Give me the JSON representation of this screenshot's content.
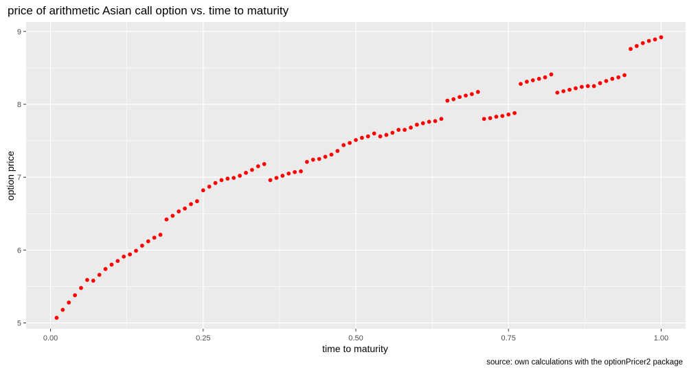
{
  "chart_data": {
    "type": "scatter",
    "title": "price of arithmetic Asian call option vs. time  to maturity",
    "xlabel": "time to maturity",
    "ylabel": "option price",
    "caption": "source: own calculations with the optionPricer2 package",
    "xlim": [
      -0.04,
      1.04
    ],
    "ylim": [
      4.92,
      9.13
    ],
    "xticks": [
      0.0,
      0.25,
      0.5,
      0.75,
      1.0
    ],
    "xtick_labels": [
      "0.00",
      "0.25",
      "0.50",
      "0.75",
      "1.00"
    ],
    "yticks": [
      5,
      6,
      7,
      8,
      9
    ],
    "ytick_labels": [
      "5",
      "6",
      "7",
      "8",
      "9"
    ],
    "grid": true,
    "point_color": "#ff0000",
    "panel_color": "#ebebeb",
    "x": [
      0.01,
      0.02,
      0.03,
      0.04,
      0.05,
      0.06,
      0.07,
      0.08,
      0.09,
      0.1,
      0.11,
      0.12,
      0.13,
      0.14,
      0.15,
      0.16,
      0.17,
      0.18,
      0.19,
      0.2,
      0.21,
      0.22,
      0.23,
      0.24,
      0.25,
      0.26,
      0.27,
      0.28,
      0.29,
      0.3,
      0.31,
      0.32,
      0.33,
      0.34,
      0.35,
      0.36,
      0.37,
      0.38,
      0.39,
      0.4,
      0.41,
      0.42,
      0.43,
      0.44,
      0.45,
      0.46,
      0.47,
      0.48,
      0.49,
      0.5,
      0.51,
      0.52,
      0.53,
      0.54,
      0.55,
      0.56,
      0.57,
      0.58,
      0.59,
      0.6,
      0.61,
      0.62,
      0.63,
      0.64,
      0.65,
      0.66,
      0.67,
      0.68,
      0.69,
      0.7,
      0.71,
      0.72,
      0.73,
      0.74,
      0.75,
      0.76,
      0.77,
      0.78,
      0.79,
      0.8,
      0.81,
      0.82,
      0.83,
      0.84,
      0.85,
      0.86,
      0.87,
      0.88,
      0.89,
      0.9,
      0.91,
      0.92,
      0.93,
      0.94,
      0.95,
      0.96,
      0.97,
      0.98,
      0.99,
      1.0
    ],
    "y": [
      5.07,
      5.18,
      5.28,
      5.38,
      5.48,
      5.59,
      5.58,
      5.66,
      5.74,
      5.8,
      5.85,
      5.91,
      5.94,
      5.99,
      6.06,
      6.12,
      6.17,
      6.21,
      6.42,
      6.47,
      6.53,
      6.57,
      6.63,
      6.67,
      6.82,
      6.87,
      6.92,
      6.96,
      6.98,
      6.99,
      7.02,
      7.06,
      7.1,
      7.15,
      7.18,
      6.96,
      6.99,
      7.02,
      7.05,
      7.07,
      7.08,
      7.21,
      7.24,
      7.25,
      7.28,
      7.31,
      7.36,
      7.44,
      7.47,
      7.51,
      7.54,
      7.56,
      7.6,
      7.56,
      7.58,
      7.61,
      7.65,
      7.65,
      7.68,
      7.72,
      7.74,
      7.76,
      7.77,
      7.8,
      8.05,
      8.07,
      8.1,
      8.12,
      8.14,
      8.17,
      7.8,
      7.81,
      7.83,
      7.84,
      7.86,
      7.88,
      8.28,
      8.31,
      8.33,
      8.35,
      8.37,
      8.41,
      8.16,
      8.18,
      8.2,
      8.22,
      8.24,
      8.25,
      8.25,
      8.29,
      8.32,
      8.35,
      8.37,
      8.4,
      8.76,
      8.8,
      8.84,
      8.87,
      8.89,
      8.92
    ]
  }
}
